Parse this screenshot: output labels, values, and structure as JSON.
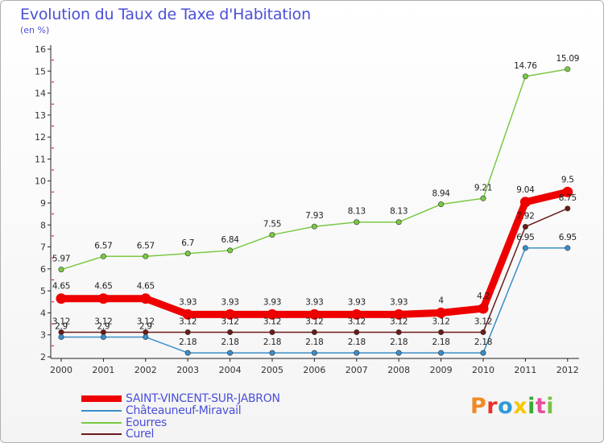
{
  "header": {
    "title": "Evolution du Taux de Taxe d'Habitation",
    "subtitle": "(en %)"
  },
  "logo": {
    "text": "Proxiti",
    "colors": [
      "#f08a24",
      "#e8302a",
      "#2e9bd6",
      "#f5c800",
      "#3aa935",
      "#e84f9c",
      "#7ac143"
    ]
  },
  "chart_data": {
    "type": "line",
    "x": [
      "2000",
      "2001",
      "2002",
      "2003",
      "2004",
      "2005",
      "2006",
      "2007",
      "2008",
      "2009",
      "2010",
      "2011",
      "2012"
    ],
    "ylim": [
      2,
      16
    ],
    "yticks": [
      "2",
      "3",
      "4",
      "5",
      "6",
      "7",
      "8",
      "9",
      "10",
      "11",
      "12",
      "13",
      "14",
      "15",
      "16"
    ],
    "grid": false,
    "legend_position": "bottom-left",
    "series": [
      {
        "name": "SAINT-VINCENT-SUR-JABRON",
        "color": "#ee0000",
        "labels": [
          "4.65",
          "4.65",
          "4.65",
          "3.93",
          "3.93",
          "3.93",
          "3.93",
          "3.93",
          "3.93",
          "4",
          "4.2",
          "9.04",
          "9.5"
        ],
        "values": [
          4.65,
          4.65,
          4.65,
          3.93,
          3.93,
          3.93,
          3.93,
          3.93,
          3.93,
          4.0,
          4.2,
          9.04,
          9.5
        ]
      },
      {
        "name": "Châteauneuf-Miravail",
        "color": "#3a8ec9",
        "labels": [
          "2.9",
          "2.9",
          "2.9",
          "2.18",
          "2.18",
          "2.18",
          "2.18",
          "2.18",
          "2.18",
          "2.18",
          "2.18",
          "6.95",
          "6.95"
        ],
        "values": [
          2.9,
          2.9,
          2.9,
          2.18,
          2.18,
          2.18,
          2.18,
          2.18,
          2.18,
          2.18,
          2.18,
          6.95,
          6.95
        ]
      },
      {
        "name": "Eourres",
        "color": "#7ac943",
        "labels": [
          "5.97",
          "6.57",
          "6.57",
          "6.7",
          "6.84",
          "7.55",
          "7.93",
          "8.13",
          "8.13",
          "8.94",
          "9.21",
          "14.76",
          "15.09"
        ],
        "values": [
          5.97,
          6.57,
          6.57,
          6.7,
          6.84,
          7.55,
          7.93,
          8.13,
          8.13,
          8.94,
          9.21,
          14.76,
          15.09
        ]
      },
      {
        "name": "Curel",
        "color": "#6b1a1a",
        "labels": [
          "3.12",
          "3.12",
          "3.12",
          "3.12",
          "3.12",
          "3.12",
          "3.12",
          "3.12",
          "3.12",
          "3.12",
          "3.12",
          "7.92",
          "8.75"
        ],
        "values": [
          3.12,
          3.12,
          3.12,
          3.12,
          3.12,
          3.12,
          3.12,
          3.12,
          3.12,
          3.12,
          3.12,
          7.92,
          8.75
        ]
      }
    ]
  }
}
